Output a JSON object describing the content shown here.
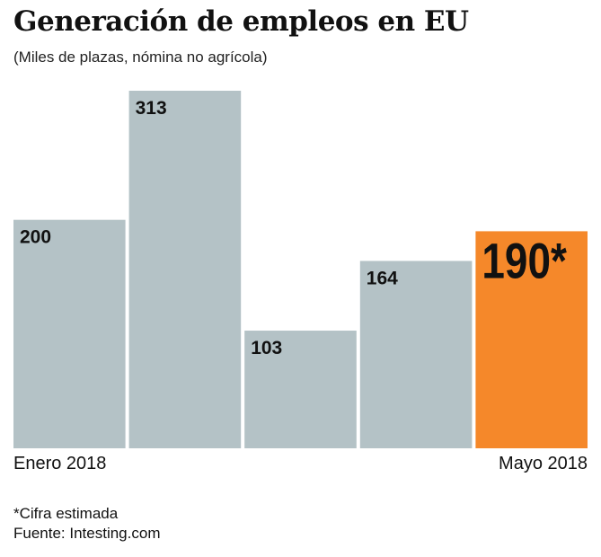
{
  "chart_data": {
    "type": "bar",
    "title": "Generación de empleos en EU",
    "subtitle": "(Miles de plazas, nómina no agrícola)",
    "categories": [
      "Enero 2018",
      "",
      "",
      "",
      "Mayo 2018"
    ],
    "values": [
      200,
      313,
      103,
      164,
      190
    ],
    "data_labels": [
      "200",
      "313",
      "103",
      "164",
      "190*"
    ],
    "ylim": [
      0,
      313
    ],
    "grid": false,
    "colors": {
      "bar": "#b4c2c6",
      "highlight": "#f5882a"
    },
    "highlight_index": 4,
    "footnote": "*Cifra estimada",
    "source": "Fuente: Intesting.com"
  }
}
